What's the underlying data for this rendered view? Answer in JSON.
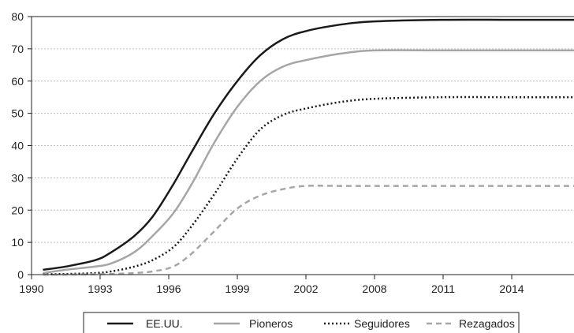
{
  "chart_data": {
    "type": "line",
    "title": "",
    "xlabel": "",
    "ylabel": "",
    "ylim": [
      0,
      80
    ],
    "yticks": [
      0,
      10,
      20,
      30,
      40,
      50,
      60,
      70,
      80
    ],
    "x_tick_labels": [
      "1990",
      "1993",
      "1996",
      "1999",
      "2002",
      "2008",
      "2011",
      "2014"
    ],
    "grid": "horizontal dotted",
    "legend_position": "bottom",
    "x": [
      1990.5,
      1991.5,
      1992.8,
      1993.5,
      1994.5,
      1995.3,
      1996.2,
      1997.0,
      1998.0,
      1999.0,
      2000.0,
      2001.0,
      2002.0,
      2005.0,
      2008.0,
      2011.0,
      2014.0,
      2017.0
    ],
    "series": [
      {
        "name": "EE.UU.",
        "color": "#1a1a1a",
        "dash": "solid",
        "values": [
          1.5,
          2.5,
          4.5,
          7,
          12,
          18,
          28,
          38,
          50,
          60,
          68,
          73,
          75.5,
          77.5,
          78.5,
          79,
          79,
          79
        ]
      },
      {
        "name": "Pioneros",
        "color": "#a6a6a6",
        "dash": "solid",
        "values": [
          0.5,
          1.5,
          2.5,
          3.5,
          7,
          12,
          19,
          28,
          41,
          52,
          60,
          64.5,
          66.5,
          68.5,
          69.5,
          69.5,
          69.5,
          69.5
        ]
      },
      {
        "name": "Seguidores",
        "color": "#1a1a1a",
        "dash": "dotted",
        "values": [
          0.1,
          0.2,
          0.5,
          1.0,
          2.5,
          4.5,
          8.5,
          15,
          25,
          36,
          45,
          49.5,
          51.5,
          53.5,
          54.5,
          55,
          55,
          55
        ]
      },
      {
        "name": "Rezagados",
        "color": "#a6a6a6",
        "dash": "dashed",
        "values": [
          0,
          0,
          0.1,
          0.2,
          0.5,
          1.0,
          2.5,
          6.5,
          13.5,
          20.5,
          24.5,
          26.5,
          27.5,
          27.5,
          27.5,
          27.5,
          27.5,
          27.5
        ]
      }
    ]
  }
}
